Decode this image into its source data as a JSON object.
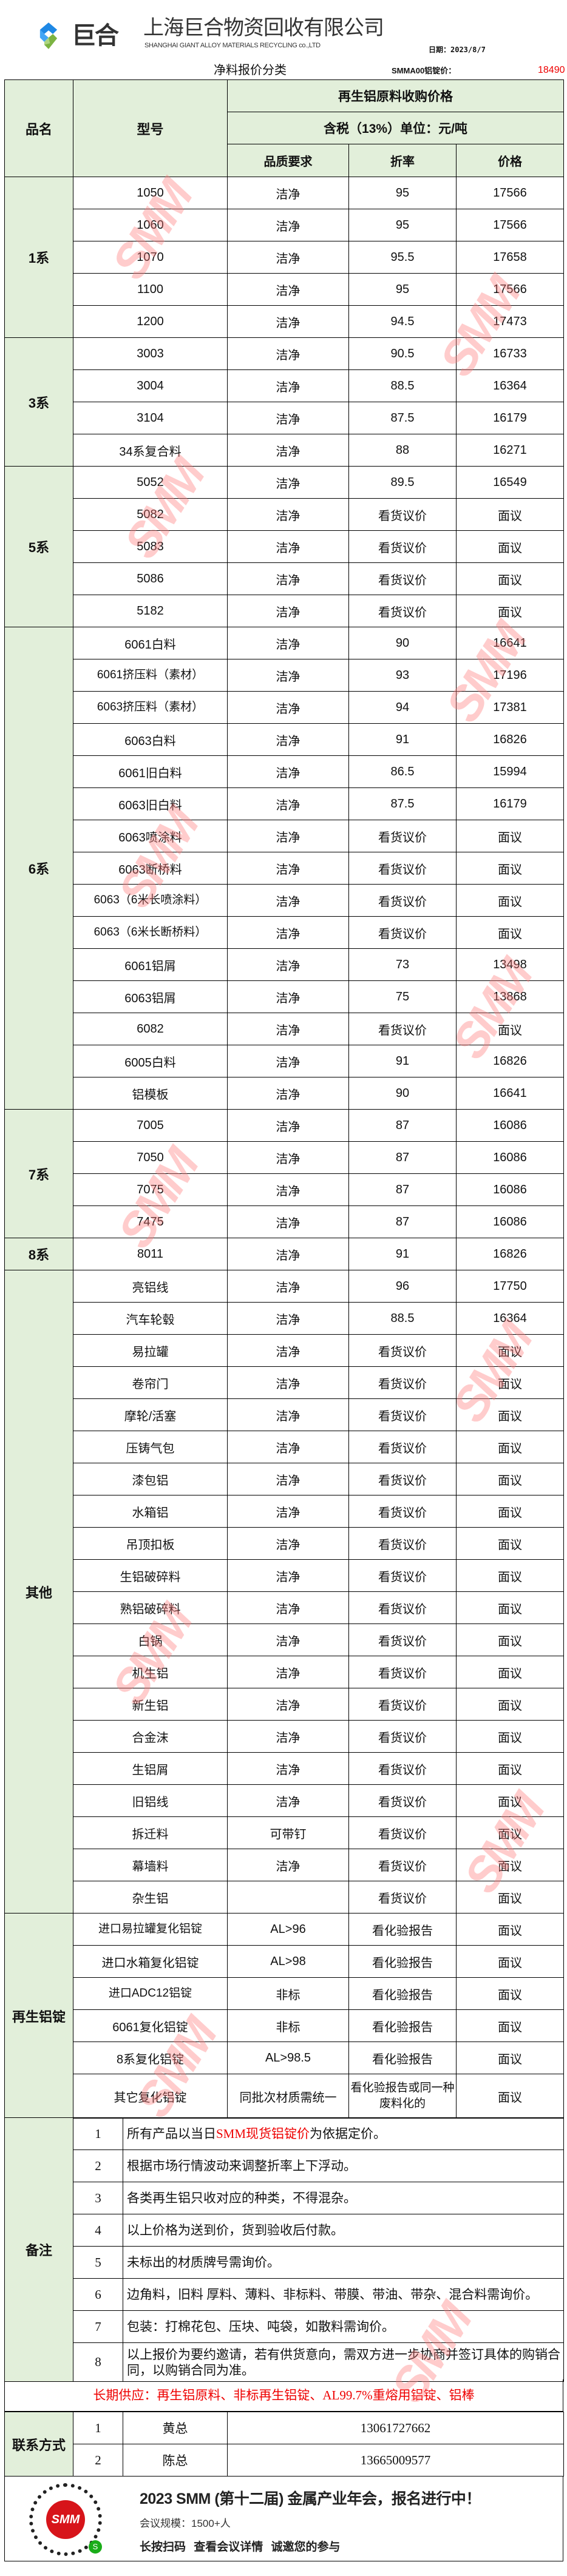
{
  "header": {
    "logo_text": "巨合",
    "company_cn": "上海巨合物资回收有限公司",
    "company_en": "SHANGHAI GIANT ALLOY MATERIALS RECYCLING co.,LTD",
    "date": "日期：2023/8/7",
    "subtitle": "净料报价分类",
    "ingot_label": "SMMA00铝锭价：",
    "ingot_price": "18490"
  },
  "colors": {
    "header_bg": "#e2efda",
    "accent_red": "#e00000",
    "watermark": "#ffc7c7"
  },
  "watermark_text": "SMM",
  "table_header": {
    "category": "品名",
    "model": "型号",
    "group_title": "再生铝原料收购价格",
    "tax_unit": "含税（13%）单位：元/吨",
    "quality": "品质要求",
    "discount": "折率",
    "price": "价格"
  },
  "sections": [
    {
      "name": "1系",
      "rows": [
        [
          "1050",
          "洁净",
          "95",
          "17566"
        ],
        [
          "1060",
          "洁净",
          "95",
          "17566"
        ],
        [
          "1070",
          "洁净",
          "95.5",
          "17658"
        ],
        [
          "1100",
          "洁净",
          "95",
          "17566"
        ],
        [
          "1200",
          "洁净",
          "94.5",
          "17473"
        ]
      ]
    },
    {
      "name": "3系",
      "rows": [
        [
          "3003",
          "洁净",
          "90.5",
          "16733"
        ],
        [
          "3004",
          "洁净",
          "88.5",
          "16364"
        ],
        [
          "3104",
          "洁净",
          "87.5",
          "16179"
        ],
        [
          "34系复合料",
          "洁净",
          "88",
          "16271"
        ]
      ]
    },
    {
      "name": "5系",
      "rows": [
        [
          "5052",
          "洁净",
          "89.5",
          "16549"
        ],
        [
          "5082",
          "洁净",
          "看货议价",
          "面议"
        ],
        [
          "5083",
          "洁净",
          "看货议价",
          "面议"
        ],
        [
          "5086",
          "洁净",
          "看货议价",
          "面议"
        ],
        [
          "5182",
          "洁净",
          "看货议价",
          "面议"
        ]
      ]
    },
    {
      "name": "6系",
      "rows": [
        [
          "6061白料",
          "洁净",
          "90",
          "16641"
        ],
        [
          "6061挤压料（素材）",
          "洁净",
          "93",
          "17196"
        ],
        [
          "6063挤压料（素材）",
          "洁净",
          "94",
          "17381"
        ],
        [
          "6063白料",
          "洁净",
          "91",
          "16826"
        ],
        [
          "6061旧白料",
          "洁净",
          "86.5",
          "15994"
        ],
        [
          "6063旧白料",
          "洁净",
          "87.5",
          "16179"
        ],
        [
          "6063喷涂料",
          "洁净",
          "看货议价",
          "面议"
        ],
        [
          "6063断桥料",
          "洁净",
          "看货议价",
          "面议"
        ],
        [
          "6063（6米长喷涂料）",
          "洁净",
          "看货议价",
          "面议"
        ],
        [
          "6063（6米长断桥料）",
          "洁净",
          "看货议价",
          "面议"
        ],
        [
          "6061铝屑",
          "洁净",
          "73",
          "13498"
        ],
        [
          "6063铝屑",
          "洁净",
          "75",
          "13868"
        ],
        [
          "6082",
          "洁净",
          "看货议价",
          "面议"
        ],
        [
          "6005白料",
          "洁净",
          "91",
          "16826"
        ],
        [
          "铝模板",
          "洁净",
          "90",
          "16641"
        ]
      ]
    },
    {
      "name": "7系",
      "rows": [
        [
          "7005",
          "洁净",
          "87",
          "16086"
        ],
        [
          "7050",
          "洁净",
          "87",
          "16086"
        ],
        [
          "7075",
          "洁净",
          "87",
          "16086"
        ],
        [
          "7475",
          "洁净",
          "87",
          "16086"
        ]
      ]
    },
    {
      "name": "8系",
      "rows": [
        [
          "8011",
          "洁净",
          "91",
          "16826"
        ]
      ]
    },
    {
      "name": "其他",
      "rows": [
        [
          "亮铝线",
          "洁净",
          "96",
          "17750"
        ],
        [
          "汽车轮毂",
          "洁净",
          "88.5",
          "16364"
        ],
        [
          "易拉罐",
          "洁净",
          "看货议价",
          "面议"
        ],
        [
          "卷帘门",
          "洁净",
          "看货议价",
          "面议"
        ],
        [
          "摩轮/活塞",
          "洁净",
          "看货议价",
          "面议"
        ],
        [
          "压铸气包",
          "洁净",
          "看货议价",
          "面议"
        ],
        [
          "漆包铝",
          "洁净",
          "看货议价",
          "面议"
        ],
        [
          "水箱铝",
          "洁净",
          "看货议价",
          "面议"
        ],
        [
          "吊顶扣板",
          "洁净",
          "看货议价",
          "面议"
        ],
        [
          "生铝破碎料",
          "洁净",
          "看货议价",
          "面议"
        ],
        [
          "熟铝破碎料",
          "洁净",
          "看货议价",
          "面议"
        ],
        [
          "白锅",
          "洁净",
          "看货议价",
          "面议"
        ],
        [
          "机生铝",
          "洁净",
          "看货议价",
          "面议"
        ],
        [
          "新生铝",
          "洁净",
          "看货议价",
          "面议"
        ],
        [
          "合金沫",
          "洁净",
          "看货议价",
          "面议"
        ],
        [
          "生铝屑",
          "洁净",
          "看货议价",
          "面议"
        ],
        [
          "旧铝线",
          "洁净",
          "看货议价",
          "面议"
        ],
        [
          "拆迁料",
          "可带钉",
          "看货议价",
          "面议"
        ],
        [
          "幕墙料",
          "洁净",
          "看货议价",
          "面议"
        ],
        [
          "杂生铝",
          "",
          "看货议价",
          "面议"
        ]
      ]
    },
    {
      "name": "再生铝锭",
      "rows": [
        [
          "进口易拉罐复化铝锭",
          "AL>96",
          "看化验报告",
          "面议"
        ],
        [
          "进口水箱复化铝锭",
          "AL>98",
          "看化验报告",
          "面议"
        ],
        [
          "进口ADC12铝锭",
          "非标",
          "看化验报告",
          "面议"
        ],
        [
          "6061复化铝锭",
          "非标",
          "看化验报告",
          "面议"
        ],
        [
          "8系复化铝锭",
          "AL>98.5",
          "看化验报告",
          "面议"
        ],
        [
          "其它复化铝锭",
          "同批次材质需统一",
          "看化验报告或同一种废料化的",
          "面议"
        ]
      ]
    }
  ],
  "notes": {
    "label": "备注",
    "items": [
      {
        "no": "1",
        "text_before": "所有产品以当日",
        "text_highlight": "SMM现货铝锭价",
        "text_after": "为依据定价。"
      },
      {
        "no": "2",
        "text": "根据市场行情波动来调整折率上下浮动。"
      },
      {
        "no": "3",
        "text": "各类再生铝只收对应的种类，不得混杂。"
      },
      {
        "no": "4",
        "text": "以上价格为送到价，货到验收后付款。"
      },
      {
        "no": "5",
        "text": "未标出的材质牌号需询价。"
      },
      {
        "no": "6",
        "text": "边角料，旧料 厚料、薄料、非标料、带膜、带油、带杂、混合料需询价。"
      },
      {
        "no": "7",
        "text": "包装：打棉花包、压块、吨袋，如散料需询价。"
      },
      {
        "no": "8",
        "text": "以上报价为要约邀请，若有供货意向，需双方进一步协商并签订具体的购销合同，以购销合同为准。"
      }
    ]
  },
  "supply": "长期供应：再生铝原料、非标再生铝锭、AL99.7%重熔用铝锭、铝棒",
  "contacts": {
    "label": "联系方式",
    "items": [
      {
        "no": "1",
        "name": "黄总",
        "phone": "13061727662"
      },
      {
        "no": "2",
        "name": "陈总",
        "phone": "13665009577"
      }
    ]
  },
  "banner": {
    "qr_logo": "SMM",
    "title": "2023 SMM (第十二届) 金属产业年会，报名进行中！",
    "scale": "会议规模：1500+人",
    "cta": "长按扫码 查看会议详情 诚邀您的参与"
  }
}
